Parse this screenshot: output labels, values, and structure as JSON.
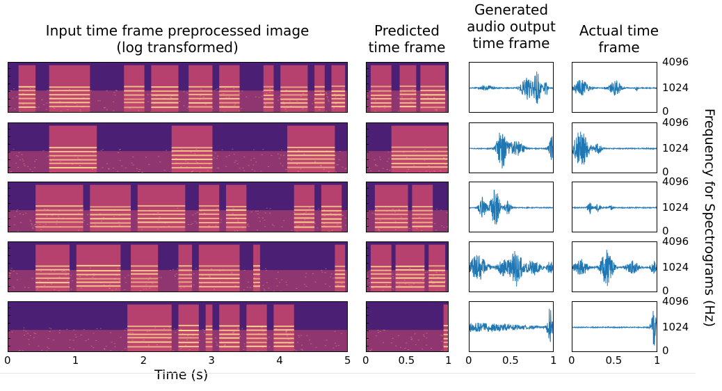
{
  "headers": {
    "input": "Input time frame preprocessed image\n(log transformed)",
    "predicted": "Predicted\ntime frame",
    "generated": "Generated\naudio output\ntime frame",
    "actual": "Actual time\nframe"
  },
  "x_ticks": {
    "input": [
      "0",
      "1",
      "2",
      "3",
      "4",
      "5"
    ],
    "predicted": [
      "0",
      "0.5",
      "1"
    ],
    "generated": [
      "0",
      "0.5",
      "1"
    ],
    "actual": [
      "0",
      "0.5",
      "1"
    ]
  },
  "x_label": "Time (s)",
  "y_ticks": [
    "4096",
    "1024",
    "0"
  ],
  "y_label": "Frequency for Spectrograms (Hz)",
  "rows": [
    {
      "input_segments": [
        [
          0.03,
          0.08
        ],
        [
          0.12,
          0.24
        ],
        [
          0.34,
          0.4
        ],
        [
          0.42,
          0.5
        ],
        [
          0.53,
          0.6
        ],
        [
          0.62,
          0.68
        ],
        [
          0.75,
          0.78
        ],
        [
          0.8,
          0.88
        ],
        [
          0.9,
          0.93
        ],
        [
          0.95,
          0.99
        ]
      ],
      "pred_segments": [
        [
          0.05,
          0.3
        ],
        [
          0.4,
          0.6
        ],
        [
          0.65,
          0.95
        ]
      ],
      "gen_bursts": [
        [
          0.2,
          0.12,
          0.1
        ],
        [
          0.68,
          0.1,
          0.5
        ],
        [
          0.8,
          0.06,
          0.7
        ],
        [
          0.9,
          0.03,
          0.4
        ]
      ],
      "act_bursts": [
        [
          0.1,
          0.12,
          0.35
        ],
        [
          0.5,
          0.1,
          0.3
        ],
        [
          0.75,
          0.02,
          0.1
        ]
      ]
    },
    {
      "input_segments": [
        [
          0.12,
          0.26
        ],
        [
          0.48,
          0.6
        ],
        [
          0.82,
          0.96
        ]
      ],
      "pred_segments": [
        [
          0.3,
          0.98
        ]
      ],
      "gen_bursts": [
        [
          0.38,
          0.08,
          0.9
        ],
        [
          0.55,
          0.12,
          0.35
        ],
        [
          0.97,
          0.05,
          0.5
        ]
      ],
      "act_bursts": [
        [
          0.1,
          0.12,
          0.8
        ],
        [
          0.3,
          0.06,
          0.25
        ]
      ]
    },
    {
      "input_segments": [
        [
          0.08,
          0.22
        ],
        [
          0.24,
          0.36
        ],
        [
          0.38,
          0.52
        ],
        [
          0.56,
          0.62
        ],
        [
          0.64,
          0.7
        ],
        [
          0.84,
          0.9
        ],
        [
          0.92,
          0.98
        ]
      ],
      "pred_segments": [
        [
          0.1,
          0.5
        ],
        [
          0.55,
          0.8
        ]
      ],
      "gen_bursts": [
        [
          0.15,
          0.06,
          0.45
        ],
        [
          0.3,
          0.08,
          0.8
        ],
        [
          0.45,
          0.05,
          0.3
        ]
      ],
      "act_bursts": [
        [
          0.2,
          0.04,
          0.25
        ],
        [
          0.3,
          0.04,
          0.2
        ],
        [
          0.45,
          0.03,
          0.1
        ]
      ]
    },
    {
      "input_segments": [
        [
          0.08,
          0.18
        ],
        [
          0.2,
          0.33
        ],
        [
          0.36,
          0.44
        ],
        [
          0.5,
          0.54
        ],
        [
          0.56,
          0.68
        ],
        [
          0.72,
          0.74
        ],
        [
          0.96,
          0.99
        ]
      ],
      "pred_segments": [
        [
          0.05,
          0.3
        ],
        [
          0.35,
          0.7
        ],
        [
          0.75,
          0.95
        ]
      ],
      "gen_bursts": [
        [
          0.1,
          0.15,
          0.55
        ],
        [
          0.4,
          0.1,
          0.35
        ],
        [
          0.55,
          0.1,
          0.8
        ],
        [
          0.75,
          0.12,
          0.35
        ],
        [
          0.95,
          0.05,
          0.3
        ]
      ],
      "act_bursts": [
        [
          0.1,
          0.12,
          0.35
        ],
        [
          0.4,
          0.1,
          0.8
        ],
        [
          0.7,
          0.1,
          0.3
        ],
        [
          0.95,
          0.05,
          0.3
        ]
      ]
    },
    {
      "input_segments": [
        [
          0.35,
          0.48
        ],
        [
          0.5,
          0.56
        ],
        [
          0.58,
          0.6
        ],
        [
          0.62,
          0.68
        ],
        [
          0.7,
          0.76
        ],
        [
          0.78,
          0.84
        ]
      ],
      "pred_segments": [
        [
          0.93,
          0.99
        ]
      ],
      "gen_bursts": [
        [
          0.05,
          0.9,
          0.18
        ],
        [
          0.95,
          0.04,
          0.9
        ]
      ],
      "act_bursts": [
        [
          0.95,
          0.04,
          0.9
        ]
      ]
    }
  ],
  "colors": {
    "spec_bg": "#4b1f73",
    "spec_mid": "#c9486e",
    "spec_hi": "#fbd98e",
    "wave": "#1f77b4"
  }
}
